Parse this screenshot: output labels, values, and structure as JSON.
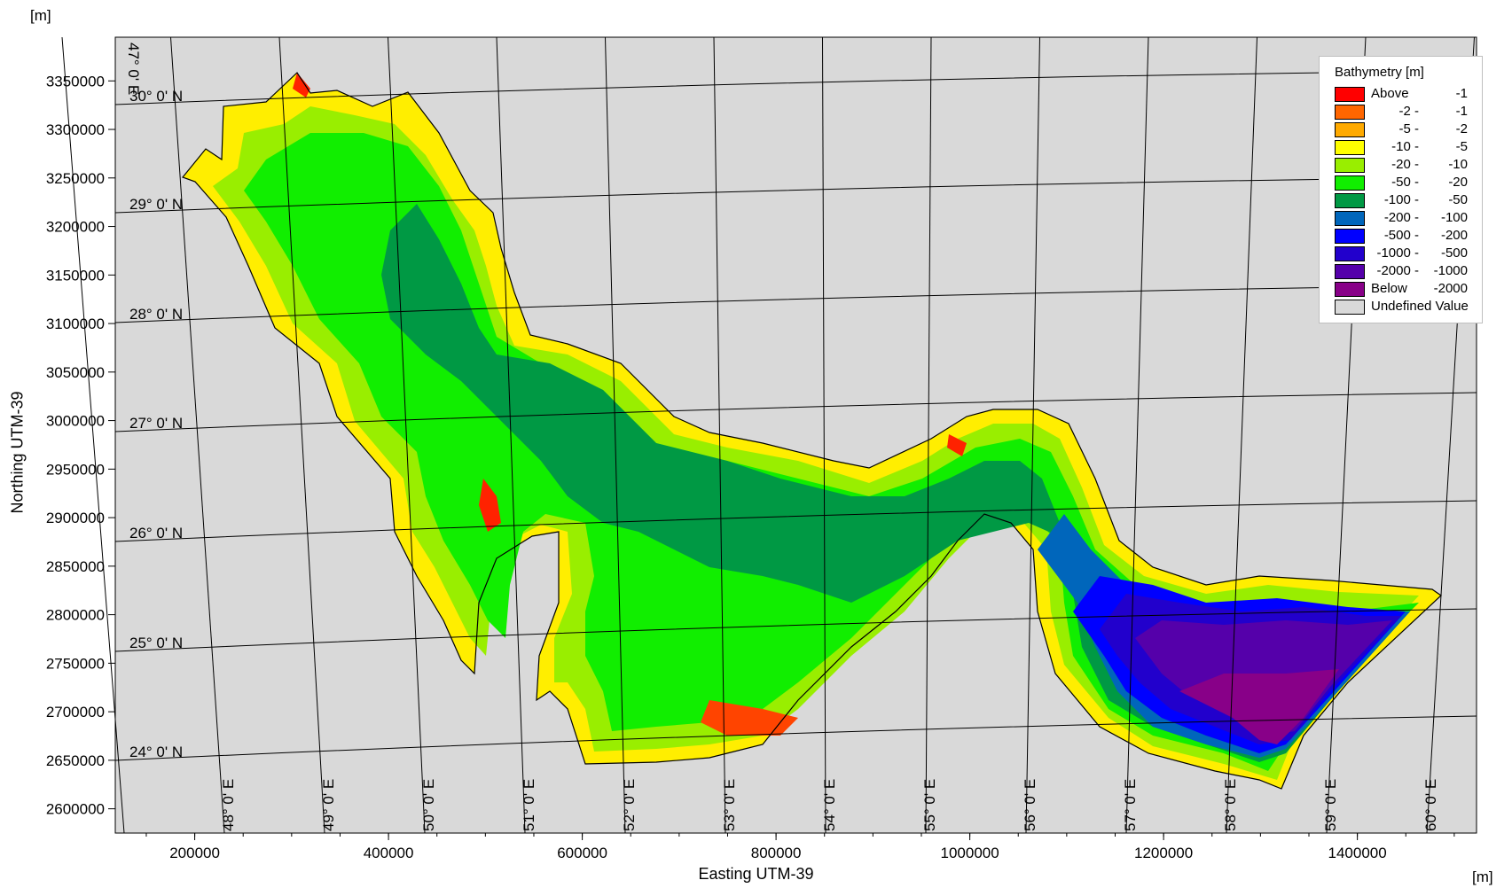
{
  "map": {
    "axis_unit_y": "[m]",
    "axis_unit_x": "[m]",
    "xlabel": "Easting UTM-39",
    "ylabel": "Northing UTM-39",
    "x_range": [
      118000,
      1523000
    ],
    "y_range": [
      2575000,
      3395000
    ],
    "x_ticks": [
      {
        "value": 200000,
        "label": "200000"
      },
      {
        "value": 400000,
        "label": "400000"
      },
      {
        "value": 600000,
        "label": "600000"
      },
      {
        "value": 800000,
        "label": "800000"
      },
      {
        "value": 1000000,
        "label": "1000000"
      },
      {
        "value": 1200000,
        "label": "1200000"
      },
      {
        "value": 1400000,
        "label": "1400000"
      }
    ],
    "y_ticks": [
      {
        "value": 3350000,
        "label": "3350000"
      },
      {
        "value": 3300000,
        "label": "3300000"
      },
      {
        "value": 3250000,
        "label": "3250000"
      },
      {
        "value": 3200000,
        "label": "3200000"
      },
      {
        "value": 3150000,
        "label": "3150000"
      },
      {
        "value": 3100000,
        "label": "3100000"
      },
      {
        "value": 3050000,
        "label": "3050000"
      },
      {
        "value": 3000000,
        "label": "3000000"
      },
      {
        "value": 2950000,
        "label": "2950000"
      },
      {
        "value": 2900000,
        "label": "2900000"
      },
      {
        "value": 2850000,
        "label": "2850000"
      },
      {
        "value": 2800000,
        "label": "2800000"
      },
      {
        "value": 2750000,
        "label": "2750000"
      },
      {
        "value": 2700000,
        "label": "2700000"
      },
      {
        "value": 2650000,
        "label": "2650000"
      },
      {
        "value": 2600000,
        "label": "2600000"
      }
    ],
    "lat_labels": [
      "30° 0' N",
      "29° 0' N",
      "28° 0' N",
      "27° 0' N",
      "26° 0' N",
      "25° 0' N",
      "24° 0' N"
    ],
    "lon_labels": [
      "47° 0' E",
      "48° 0' E",
      "49° 0' E",
      "50° 0' E",
      "51° 0' E",
      "52° 0' E",
      "53° 0' E",
      "54° 0' E",
      "55° 0' E",
      "56° 0' E",
      "57° 0' E",
      "58° 0' E",
      "59° 0' E",
      "60° 0' E"
    ],
    "background_color": "#d9d9d9"
  },
  "legend": {
    "title": "Bathymetry [m]",
    "position": "top-right",
    "items": [
      {
        "from": "Above",
        "to": "-1",
        "color": "#ff0000"
      },
      {
        "from": "-2 -",
        "to": "-1",
        "color": "#ff6600"
      },
      {
        "from": "-5 -",
        "to": "-2",
        "color": "#ffaa00"
      },
      {
        "from": "-10 -",
        "to": "-5",
        "color": "#ffff00"
      },
      {
        "from": "-20 -",
        "to": "-10",
        "color": "#99ee00"
      },
      {
        "from": "-50 -",
        "to": "-20",
        "color": "#11ee00"
      },
      {
        "from": "-100 -",
        "to": "-50",
        "color": "#009944"
      },
      {
        "from": "-200 -",
        "to": "-100",
        "color": "#0066bb"
      },
      {
        "from": "-500 -",
        "to": "-200",
        "color": "#0000ff"
      },
      {
        "from": "-1000 -",
        "to": "-500",
        "color": "#2200cc"
      },
      {
        "from": "-2000 -",
        "to": "-1000",
        "color": "#5500aa"
      },
      {
        "from": "Below",
        "to": "-2000",
        "color": "#880088"
      }
    ],
    "undefined_label": "Undefined Value",
    "undefined_color": "#d9d9d9"
  }
}
